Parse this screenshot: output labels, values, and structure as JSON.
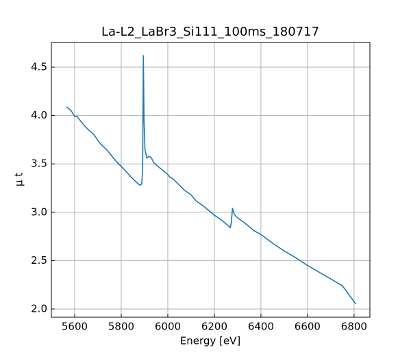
{
  "chart_data": {
    "type": "line",
    "title": "La-L2_LaBr3_Si111_100ms_180717",
    "xlabel": "Energy [eV]",
    "ylabel": "μ t",
    "x": [
      5565,
      5585,
      5600,
      5610,
      5640,
      5660,
      5680,
      5710,
      5740,
      5780,
      5810,
      5840,
      5865,
      5880,
      5888,
      5892,
      5895,
      5898,
      5902,
      5910,
      5920,
      5930,
      5940,
      5970,
      6000,
      6010,
      6020,
      6050,
      6070,
      6100,
      6120,
      6150,
      6180,
      6200,
      6230,
      6260,
      6268,
      6272,
      6278,
      6285,
      6300,
      6330,
      6370,
      6400,
      6450,
      6500,
      6550,
      6600,
      6650,
      6700,
      6750,
      6808
    ],
    "series": [
      {
        "name": "μ t",
        "color": "#1f77b4",
        "values": [
          4.09,
          4.05,
          3.99,
          3.99,
          3.9,
          3.85,
          3.81,
          3.71,
          3.64,
          3.52,
          3.45,
          3.37,
          3.31,
          3.28,
          3.29,
          3.45,
          4.62,
          3.95,
          3.65,
          3.56,
          3.58,
          3.56,
          3.51,
          3.45,
          3.39,
          3.36,
          3.35,
          3.28,
          3.23,
          3.18,
          3.12,
          3.07,
          3.01,
          2.97,
          2.92,
          2.86,
          2.84,
          2.88,
          3.04,
          2.98,
          2.94,
          2.89,
          2.81,
          2.77,
          2.68,
          2.6,
          2.53,
          2.45,
          2.38,
          2.31,
          2.24,
          2.05
        ]
      }
    ],
    "xlim": [
      5500,
      6868
    ],
    "xticks": [
      5600,
      5800,
      6000,
      6200,
      6400,
      6600,
      6800
    ],
    "ylim": [
      1.915,
      4.755
    ],
    "yticks": [
      {
        "value": 2.0,
        "label": "2.0"
      },
      2.5,
      {
        "value": 3.0,
        "label": "3.0"
      },
      3.5,
      {
        "value": 4.0,
        "label": "4.0"
      },
      4.5
    ],
    "grid": true
  }
}
